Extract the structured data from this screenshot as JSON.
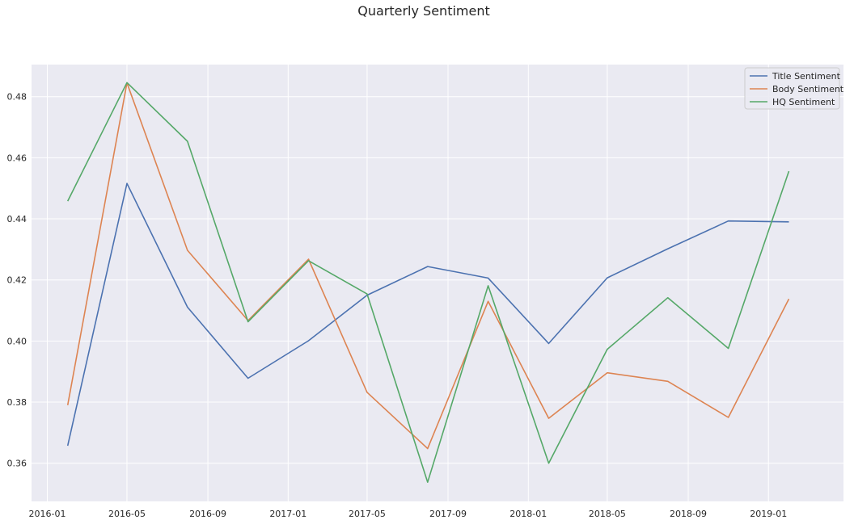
{
  "chart_data": {
    "type": "line",
    "title": "Quarterly Sentiment",
    "xlabel": "",
    "ylabel": "",
    "x": [
      "2016-02-01",
      "2016-05-01",
      "2016-08-01",
      "2016-11-01",
      "2017-02-01",
      "2017-05-01",
      "2017-08-01",
      "2017-11-01",
      "2018-02-01",
      "2018-05-01",
      "2018-08-01",
      "2018-11-01",
      "2019-02-01"
    ],
    "x_ticks": [
      "2016-01",
      "2016-05",
      "2016-09",
      "2017-01",
      "2017-05",
      "2017-09",
      "2018-01",
      "2018-05",
      "2018-09",
      "2019-01"
    ],
    "y_ticks": [
      0.36,
      0.38,
      0.4,
      0.42,
      0.44,
      0.46,
      0.48
    ],
    "ylim": [
      0.3475,
      0.4905
    ],
    "xlim": [
      "2015-12-08",
      "2019-04-25"
    ],
    "grid": true,
    "legend_position": "top-right",
    "series": [
      {
        "name": "Title Sentiment",
        "color": "#4c72b0",
        "values": [
          0.3657,
          0.4516,
          0.4111,
          0.3878,
          0.4001,
          0.415,
          0.4244,
          0.4206,
          0.3992,
          0.4207,
          0.4302,
          0.4393,
          0.439
        ]
      },
      {
        "name": "Body Sentiment",
        "color": "#dd8452",
        "values": [
          0.379,
          0.4845,
          0.4297,
          0.4067,
          0.4268,
          0.3832,
          0.3648,
          0.413,
          0.3747,
          0.3896,
          0.3868,
          0.375,
          0.4138
        ]
      },
      {
        "name": "HQ Sentiment",
        "color": "#55a868",
        "values": [
          0.4458,
          0.4846,
          0.4654,
          0.4063,
          0.4263,
          0.4154,
          0.3538,
          0.4181,
          0.36,
          0.3973,
          0.4142,
          0.3976,
          0.4556
        ]
      }
    ],
    "style": {
      "background": "#eaeaf2",
      "grid_color": "#ffffff",
      "text_color": "#262626"
    }
  }
}
